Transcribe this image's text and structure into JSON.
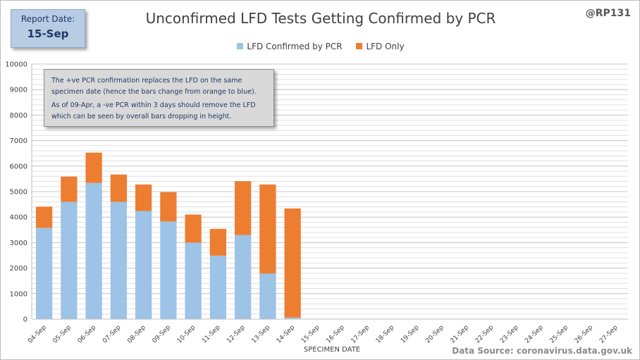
{
  "report": {
    "label": "Report Date:",
    "date": "15-Sep"
  },
  "handle": "@RP131",
  "annotation": {
    "line1": "The +ve PCR confirmation replaces the LFD on the same specimen date (hence the bars change from orange to blue).",
    "line2": "As of 09-Apr, a -ve PCR within 3 days should remove the LFD which can be seen by overall bars dropping in height."
  },
  "source": "Data Source: coronavirus.data.gov.uk",
  "chart_data": {
    "type": "bar",
    "stacked": true,
    "title": "Unconfirmed LFD Tests Getting Confirmed by PCR",
    "xlabel": "SPECIMEN DATE",
    "ylabel": "",
    "ylim": [
      0,
      10000
    ],
    "yticks": [
      0,
      1000,
      2000,
      3000,
      4000,
      5000,
      6000,
      7000,
      8000,
      9000,
      10000
    ],
    "legend_position": "top",
    "grid": true,
    "categories": [
      "04-Sep",
      "05-Sep",
      "06-Sep",
      "07-Sep",
      "08-Sep",
      "09-Sep",
      "10-Sep",
      "11-Sep",
      "12-Sep",
      "13-Sep",
      "14-Sep",
      "15-Sep",
      "16-Sep",
      "17-Sep",
      "18-Sep",
      "19-Sep",
      "20-Sep",
      "21-Sep",
      "22-Sep",
      "23-Sep",
      "24-Sep",
      "25-Sep",
      "26-Sep",
      "27-Sep"
    ],
    "series": [
      {
        "name": "LFD Confirmed by PCR",
        "color": "#9dc3e6",
        "values": [
          3580,
          4600,
          5340,
          4600,
          4240,
          3830,
          3000,
          2490,
          3300,
          1790,
          60,
          0,
          0,
          0,
          0,
          0,
          0,
          0,
          0,
          0,
          0,
          0,
          0,
          0
        ]
      },
      {
        "name": "LFD Only",
        "color": "#ed7d31",
        "values": [
          830,
          990,
          1190,
          1070,
          1040,
          1150,
          1100,
          1050,
          2110,
          3490,
          4280,
          0,
          0,
          0,
          0,
          0,
          0,
          0,
          0,
          0,
          0,
          0,
          0,
          0
        ]
      }
    ]
  }
}
